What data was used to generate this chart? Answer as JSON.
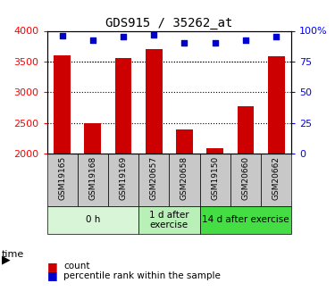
{
  "title": "GDS915 / 35262_at",
  "samples": [
    "GSM19165",
    "GSM19168",
    "GSM19169",
    "GSM20657",
    "GSM20658",
    "GSM19150",
    "GSM20660",
    "GSM20662"
  ],
  "counts": [
    3600,
    2500,
    3550,
    3700,
    2390,
    2080,
    2770,
    3580
  ],
  "percentiles": [
    96,
    92,
    95,
    97,
    90,
    90,
    92,
    95
  ],
  "ylim_left": [
    2000,
    4000
  ],
  "ylim_right": [
    0,
    100
  ],
  "yticks_left": [
    2000,
    2500,
    3000,
    3500,
    4000
  ],
  "yticks_right": [
    0,
    25,
    50,
    75,
    100
  ],
  "groups": [
    {
      "label": "0 h",
      "start": 0,
      "end": 3,
      "color": "#d8f5d8"
    },
    {
      "label": "1 d after\nexercise",
      "start": 3,
      "end": 5,
      "color": "#b8f0b8"
    },
    {
      "label": "14 d after exercise",
      "start": 5,
      "end": 8,
      "color": "#44dd44"
    }
  ],
  "bar_color": "#cc0000",
  "dot_color": "#0000cc",
  "bar_width": 0.55,
  "grid_color": "#000000",
  "background_color": "#ffffff",
  "label_bg_color": "#c8c8c8"
}
